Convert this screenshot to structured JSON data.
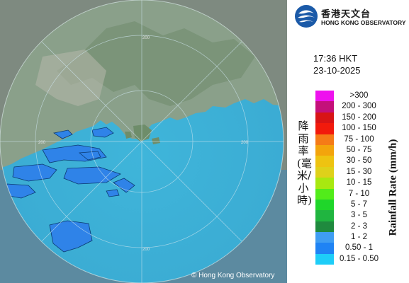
{
  "header": {
    "org_name_cn": "香港天文台",
    "org_name_en": "HONG KONG OBSERVATORY"
  },
  "timestamp": {
    "time": "17:36 HKT",
    "date": "23-10-2025"
  },
  "legend": {
    "title_en": "Rainfall Rate (mm/h)",
    "title_cn": "降雨率(毫米/小時)",
    "items": [
      {
        "label": ">300",
        "color": "#ee11ee"
      },
      {
        "label": "200 - 300",
        "color": "#c4107a"
      },
      {
        "label": "150 - 200",
        "color": "#d81416"
      },
      {
        "label": "100 - 150",
        "color": "#f21a0c"
      },
      {
        "label": "75 - 100",
        "color": "#f57b17"
      },
      {
        "label": "50 - 75",
        "color": "#f3a40c"
      },
      {
        "label": "30 - 50",
        "color": "#eec311"
      },
      {
        "label": "15 - 30",
        "color": "#dfd11a"
      },
      {
        "label": "10 - 15",
        "color": "#a8e810"
      },
      {
        "label": "7 - 10",
        "color": "#52ec1a"
      },
      {
        "label": "5 - 7",
        "color": "#1fd62a"
      },
      {
        "label": "3 - 5",
        "color": "#20b540"
      },
      {
        "label": "2 - 3",
        "color": "#1f8a3e"
      },
      {
        "label": "1 - 2",
        "color": "#3f9df2"
      },
      {
        "label": "0.50 - 1",
        "color": "#1f83f4"
      },
      {
        "label": "0.15 - 0.50",
        "color": "#1ecdf8"
      }
    ]
  },
  "map": {
    "range_ring_labels": [
      "200",
      "200",
      "200",
      "200"
    ],
    "copyright": "© Hong Kong Observatory"
  }
}
